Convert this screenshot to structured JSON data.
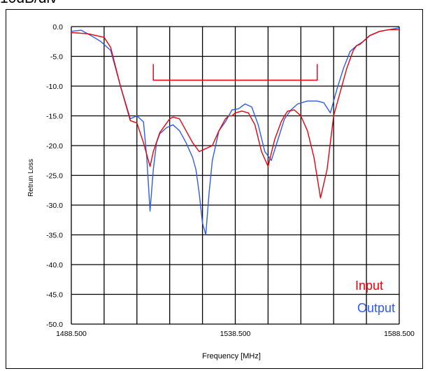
{
  "corner_label": "10dB/div",
  "colors": {
    "input": "#e8000b",
    "output": "#2f5bea",
    "marker": "#e8000b",
    "grid": "#000000"
  },
  "chart_data": {
    "type": "line",
    "title": "",
    "xlabel": "Frequency [MHz]",
    "ylabel": "Retrun Loss",
    "xlim": [
      1488.5,
      1588.5
    ],
    "ylim": [
      -50,
      0
    ],
    "x_tick_labels": [
      "1488.500",
      "1538.500",
      "1588.500"
    ],
    "y_tick_labels": [
      "0.0",
      "-5.0",
      "-10.0",
      "-15.0",
      "-20.0",
      "-25.0",
      "-30.0",
      "-35.0",
      "-40.0",
      "-45.0",
      "-50.0"
    ],
    "y_ticks": [
      0,
      -5,
      -10,
      -15,
      -20,
      -25,
      -30,
      -35,
      -40,
      -45,
      -50
    ],
    "x_grid_divisions": 10,
    "grid": true,
    "legend": {
      "placement": "bottom-right",
      "entries": [
        "Input",
        "Output"
      ]
    },
    "passband_marker": {
      "x_start": 1513.5,
      "x_end": 1563.5,
      "y_level": -9.0,
      "y_top": -6.3
    },
    "series": [
      {
        "name": "Input",
        "color": "#e8000b",
        "x": [
          1488.5,
          1493.5,
          1498.5,
          1500.5,
          1503.5,
          1506.5,
          1508.5,
          1510.5,
          1512.5,
          1513.5,
          1515.5,
          1518.5,
          1519.5,
          1521.5,
          1523.5,
          1525.5,
          1527.5,
          1529.5,
          1531.5,
          1533.5,
          1535.5,
          1536.5,
          1537.5,
          1538.5,
          1540.5,
          1542.5,
          1544.5,
          1546.5,
          1548.5,
          1550.5,
          1552.5,
          1553.5,
          1554.5,
          1556.5,
          1558.5,
          1560.5,
          1562.5,
          1564.5,
          1566.5,
          1568.5,
          1570.5,
          1571.5,
          1572.5,
          1573.5,
          1574.5,
          1575.5,
          1576.5,
          1577.5,
          1579.5,
          1582.5,
          1585.5,
          1588.5
        ],
        "y": [
          -1.0,
          -1.2,
          -1.8,
          -3.5,
          -10.0,
          -15.8,
          -16.2,
          -19.5,
          -23.5,
          -21.0,
          -17.8,
          -15.5,
          -15.2,
          -15.5,
          -17.5,
          -19.5,
          -21.0,
          -20.5,
          -20.0,
          -17.5,
          -15.5,
          -15.0,
          -15.0,
          -14.5,
          -14.2,
          -14.5,
          -16.5,
          -21.0,
          -23.5,
          -19.0,
          -16.0,
          -15.0,
          -14.2,
          -14.0,
          -15.0,
          -17.5,
          -22.0,
          -28.8,
          -24.0,
          -15.0,
          -11.0,
          -9.0,
          -7.0,
          -5.5,
          -4.0,
          -3.2,
          -3.0,
          -2.5,
          -1.5,
          -0.8,
          -0.5,
          -0.5
        ]
      },
      {
        "name": "Output",
        "color": "#2f5bea",
        "x": [
          1488.5,
          1491.5,
          1494.5,
          1497.5,
          1500.5,
          1503.5,
          1506.5,
          1508.5,
          1510.5,
          1511.5,
          1512.5,
          1513.5,
          1514.5,
          1515.5,
          1516.5,
          1517.5,
          1519.5,
          1521.5,
          1523.5,
          1525.5,
          1526.5,
          1527.5,
          1528.5,
          1529.5,
          1530.5,
          1531.5,
          1533.5,
          1535.5,
          1537.5,
          1539.5,
          1541.5,
          1543.5,
          1545.5,
          1547.5,
          1549.5,
          1551.5,
          1553.5,
          1555.5,
          1557.5,
          1560.5,
          1563.5,
          1565.5,
          1567.5,
          1569.5,
          1571.5,
          1573.5,
          1575.5,
          1577.5,
          1579.5,
          1582.5,
          1585.5,
          1588.5
        ],
        "y": [
          -0.8,
          -0.6,
          -1.5,
          -2.5,
          -4.0,
          -10.0,
          -15.5,
          -15.0,
          -16.0,
          -22.0,
          -31.0,
          -24.0,
          -19.5,
          -18.0,
          -17.5,
          -17.0,
          -16.5,
          -17.5,
          -19.5,
          -22.0,
          -24.0,
          -28.0,
          -33.0,
          -35.0,
          -28.0,
          -22.5,
          -17.5,
          -16.0,
          -14.0,
          -13.8,
          -13.0,
          -13.5,
          -16.5,
          -21.0,
          -22.5,
          -19.0,
          -15.5,
          -14.0,
          -13.0,
          -12.5,
          -12.5,
          -12.8,
          -14.5,
          -10.5,
          -7.0,
          -4.2,
          -3.2,
          -2.5,
          -1.5,
          -0.8,
          -0.5,
          -0.2
        ]
      }
    ]
  }
}
